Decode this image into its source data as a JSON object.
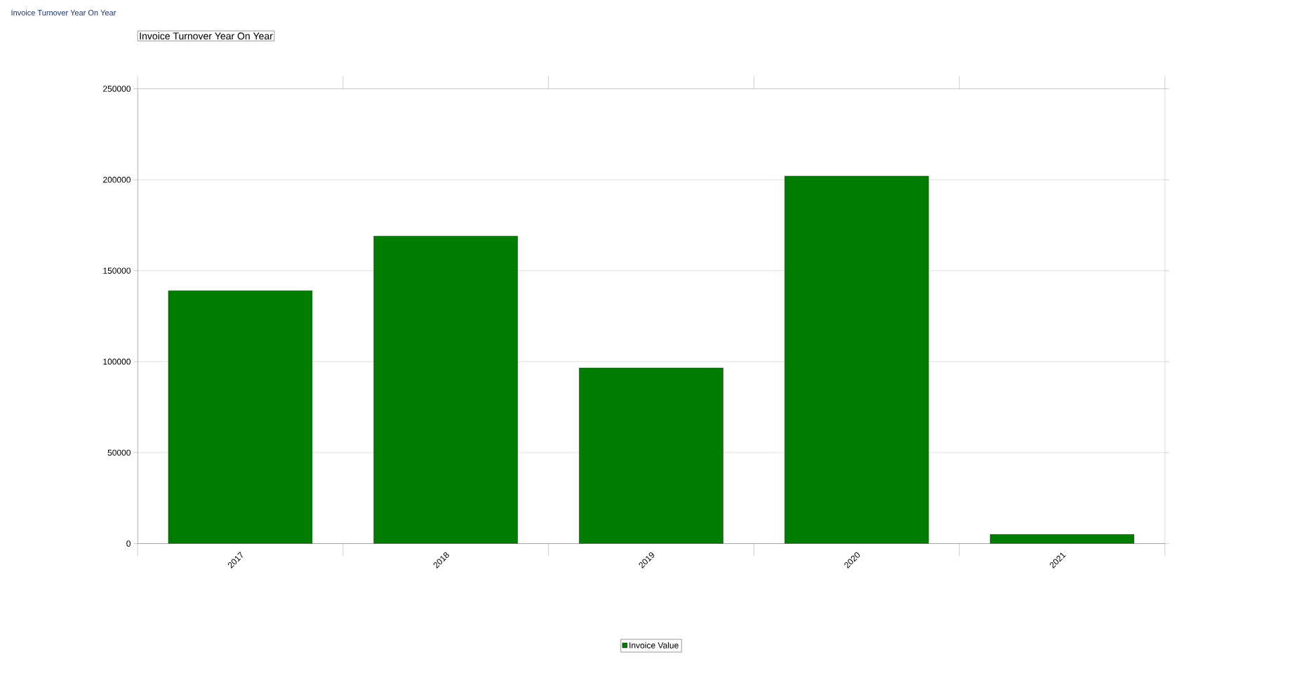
{
  "chart_data": {
    "type": "bar",
    "title": "Invoice Turnover Year On Year",
    "annotations": [
      "Invoice Turnover Year On Year"
    ],
    "categories": [
      "2017",
      "2018",
      "2019",
      "2020",
      "2021"
    ],
    "series": [
      {
        "name": "Invoice Value",
        "color": "#007d00",
        "values": [
          139000,
          169000,
          96500,
          202000,
          5000
        ]
      }
    ],
    "ylim": [
      0,
      250000
    ],
    "yticks": [
      0,
      50000,
      100000,
      150000,
      200000,
      250000
    ],
    "grid": "y",
    "legend": "bottom"
  }
}
